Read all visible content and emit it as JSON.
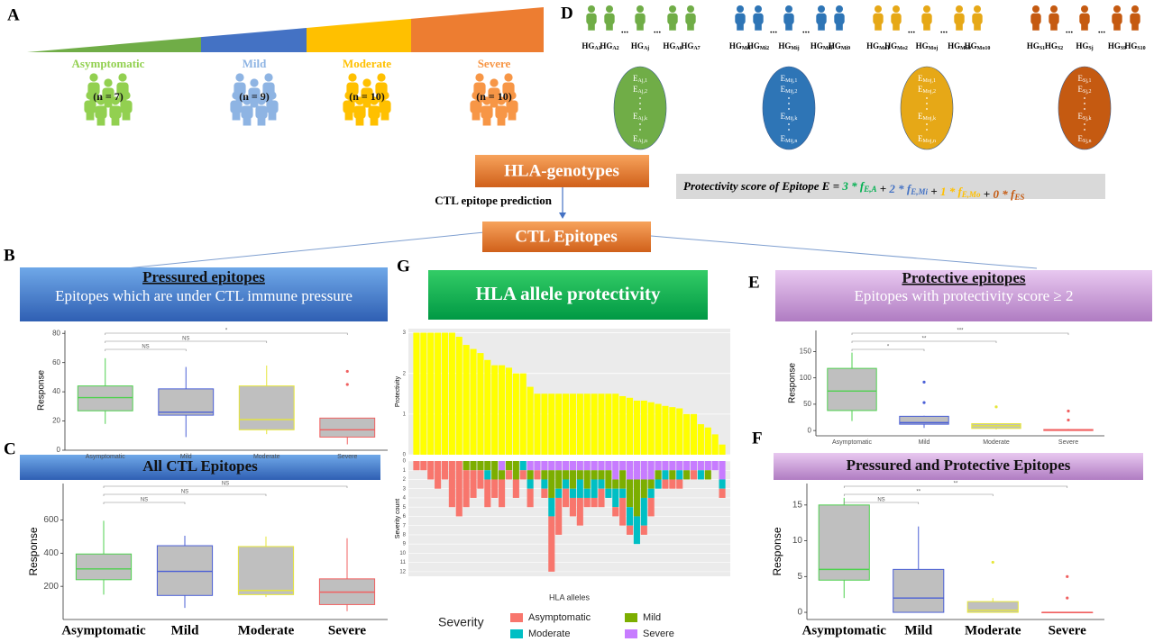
{
  "panels": {
    "A": "A",
    "B": "B",
    "C": "C",
    "D": "D",
    "E": "E",
    "F": "F",
    "G": "G"
  },
  "severity_groups": [
    {
      "name": "Asymptomatic",
      "n": "(n = 7)",
      "color": "#92d050"
    },
    {
      "name": "Mild",
      "n": "(n = 9)",
      "color": "#8eb4e3"
    },
    {
      "name": "Moderate",
      "n": "(n = 10)",
      "color": "#ffc000"
    },
    {
      "name": "Severe",
      "n": "(n = 10)",
      "color": "#f79646"
    }
  ],
  "genotypes": {
    "prefix": "HG",
    "ellipsis": "...",
    "epitope_prefix": "E",
    "groups": [
      {
        "color": "#70ad47",
        "members": [
          "A1",
          "A2",
          "Aj",
          "A6",
          "A7"
        ],
        "epitopes": [
          "Aj,1",
          "Aj,2",
          "Aj,k",
          "Aj,n"
        ]
      },
      {
        "color": "#2e75b6",
        "members": [
          "Mi1",
          "Mi2",
          "Mij",
          "Mi8",
          "Mi9"
        ],
        "epitopes": [
          "Mij,1",
          "Mij,2",
          "Mij,k",
          "Mij,n"
        ]
      },
      {
        "color": "#e6a817",
        "members": [
          "Mo1",
          "Mo2",
          "Moj",
          "Mo9",
          "Mo10"
        ],
        "epitopes": [
          "Moj,1",
          "Moj,2",
          "Moj,k",
          "Moj,n"
        ]
      },
      {
        "color": "#c55a11",
        "members": [
          "S1",
          "S2",
          "Sj",
          "S9",
          "S10"
        ],
        "epitopes": [
          "Sj,1",
          "Sj,2",
          "Sj,k",
          "Sj,n"
        ]
      }
    ]
  },
  "flow": {
    "hla_genotypes": "HLA-genotypes",
    "prediction": "CTL epitope prediction",
    "ctl_epitopes": "CTL Epitopes"
  },
  "formula": {
    "lead": "Protectivity score of Epitope E = ",
    "times": " * ",
    "plus": " + ",
    "terms": [
      {
        "coef": 3,
        "symbol": "f",
        "sub": "E,A",
        "color": "#00b050"
      },
      {
        "coef": 2,
        "symbol": "f",
        "sub": "E,Mi",
        "color": "#4472c4"
      },
      {
        "coef": 1,
        "symbol": "f",
        "sub": "E,Mo",
        "color": "#ffc000"
      },
      {
        "coef": 0,
        "symbol": "f",
        "sub": "ES",
        "color": "#c55a11"
      }
    ]
  },
  "headers": {
    "B": {
      "title": "Pressured epitopes",
      "subtitle": "Epitopes which are under CTL immune  pressure"
    },
    "C": {
      "title": "All CTL Epitopes"
    },
    "E": {
      "title": "Protective epitopes",
      "subtitle": "Epitopes with  protectivity score ≥ 2"
    },
    "F": {
      "title": "Pressured and Protective Epitopes"
    },
    "G": {
      "title": "HLA allele protectivity"
    }
  },
  "chart_data": [
    {
      "type": "box",
      "ylabel": "Response",
      "categories": [
        "Asymptomatic",
        "Mild",
        "Moderate",
        "Severe"
      ],
      "colors": [
        "#4fd14f",
        "#4a5fd6",
        "#e6e63a",
        "#f06060"
      ],
      "boxes": [
        {
          "low": 18,
          "q1": 27,
          "median": 36,
          "q3": 44,
          "high": 63,
          "outliers": []
        },
        {
          "low": 9,
          "q1": 24,
          "median": 26,
          "q3": 42,
          "high": 57,
          "outliers": []
        },
        {
          "low": 11,
          "q1": 14,
          "median": 21,
          "q3": 44,
          "high": 58,
          "outliers": []
        },
        {
          "low": 4,
          "q1": 9,
          "median": 14,
          "q3": 22,
          "high": 22,
          "outliers": [
            45,
            54
          ]
        }
      ],
      "significance": [
        "NS",
        "NS",
        "*"
      ],
      "ylim": [
        0,
        82
      ],
      "yticks": [
        0,
        20,
        40,
        60,
        80
      ]
    },
    {
      "type": "box",
      "ylabel": "Response",
      "categories": [
        "Asymptomatic",
        "Mild",
        "Moderate",
        "Severe"
      ],
      "colors": [
        "#4fd14f",
        "#4a5fd6",
        "#e6e63a",
        "#f06060"
      ],
      "boxes": [
        {
          "low": 150,
          "q1": 240,
          "median": 305,
          "q3": 395,
          "high": 595,
          "outliers": []
        },
        {
          "low": 70,
          "q1": 145,
          "median": 290,
          "q3": 445,
          "high": 505,
          "outliers": []
        },
        {
          "low": 135,
          "q1": 150,
          "median": 175,
          "q3": 440,
          "high": 500,
          "outliers": []
        },
        {
          "low": 50,
          "q1": 90,
          "median": 165,
          "q3": 245,
          "high": 490,
          "outliers": []
        }
      ],
      "significance": [
        "NS",
        "NS",
        "NS"
      ],
      "ylim": [
        0,
        820
      ],
      "yticks": [
        200,
        400,
        600
      ]
    },
    {
      "type": "box",
      "ylabel": "Response",
      "categories": [
        "Asymptomatic",
        "Mild",
        "Moderate",
        "Severe"
      ],
      "colors": [
        "#4fd14f",
        "#4a5fd6",
        "#e6e63a",
        "#f06060"
      ],
      "boxes": [
        {
          "low": 18,
          "q1": 38,
          "median": 75,
          "q3": 118,
          "high": 148,
          "outliers": []
        },
        {
          "low": 5,
          "q1": 12,
          "median": 15,
          "q3": 27,
          "high": 28,
          "outliers": [
            53,
            92
          ]
        },
        {
          "low": 2,
          "q1": 4,
          "median": 9,
          "q3": 13,
          "high": 14,
          "outliers": [
            45
          ]
        },
        {
          "low": 0,
          "q1": 0,
          "median": 1,
          "q3": 2,
          "high": 3,
          "outliers": [
            20,
            37
          ]
        }
      ],
      "significance": [
        "*",
        "**",
        "***"
      ],
      "ylim": [
        -10,
        190
      ],
      "yticks": [
        0,
        50,
        100,
        150
      ]
    },
    {
      "type": "box",
      "ylabel": "Response",
      "categories": [
        "Asymptomatic",
        "Mild",
        "Moderate",
        "Severe"
      ],
      "colors": [
        "#4fd14f",
        "#4a5fd6",
        "#e6e63a",
        "#f06060"
      ],
      "boxes": [
        {
          "low": 2,
          "q1": 4.5,
          "median": 6,
          "q3": 15,
          "high": 16,
          "outliers": []
        },
        {
          "low": 0,
          "q1": 0,
          "median": 2,
          "q3": 6,
          "high": 12,
          "outliers": []
        },
        {
          "low": 0,
          "q1": 0,
          "median": 0.3,
          "q3": 1.5,
          "high": 2,
          "outliers": [
            7
          ]
        },
        {
          "low": 0,
          "q1": 0,
          "median": 0,
          "q3": 0,
          "high": 0,
          "outliers": [
            2,
            5
          ]
        }
      ],
      "significance": [
        "NS",
        "**",
        "**"
      ],
      "ylim": [
        -1,
        18
      ],
      "yticks": [
        0,
        5,
        10,
        15
      ]
    },
    {
      "type": "bar",
      "ylabel": "Protectivity",
      "color": "#ffff00",
      "categories": [
        null,
        null,
        null,
        null,
        null,
        null,
        null,
        null,
        null,
        null,
        null,
        null,
        null,
        null,
        null,
        null,
        null,
        null,
        null,
        null,
        null,
        null,
        null,
        null,
        null,
        null,
        null,
        null,
        null,
        null,
        null,
        null,
        null,
        null,
        null,
        null,
        null,
        null,
        null,
        null,
        null,
        null,
        null,
        null
      ],
      "values": [
        3,
        3,
        3,
        3,
        3,
        3,
        2.9,
        2.7,
        2.6,
        2.5,
        2.33,
        2.2,
        2.2,
        2.14,
        2,
        2,
        1.67,
        1.5,
        1.5,
        1.5,
        1.5,
        1.5,
        1.5,
        1.5,
        1.5,
        1.5,
        1.5,
        1.5,
        1.5,
        1.44,
        1.4,
        1.33,
        1.33,
        1.29,
        1.25,
        1.2,
        1.17,
        1.14,
        1,
        1,
        0.75,
        0.67,
        0.5,
        0.25
      ],
      "ylim": [
        0,
        3.1
      ],
      "yticks": [
        0,
        1,
        2,
        3
      ],
      "grid": true
    },
    {
      "type": "stacked_bar",
      "ylabel": "Severity count",
      "xlabel": "HLA alleles",
      "legend_title": "Severity",
      "categories": [
        null,
        null,
        null,
        null,
        null,
        null,
        null,
        null,
        null,
        null,
        null,
        null,
        null,
        null,
        null,
        null,
        null,
        null,
        null,
        null,
        null,
        null,
        null,
        null,
        null,
        null,
        null,
        null,
        null,
        null,
        null,
        null,
        null,
        null,
        null,
        null,
        null,
        null,
        null,
        null,
        null,
        null,
        null,
        null
      ],
      "series": [
        {
          "name": "Asymptomatic",
          "color": "#f8766d",
          "values": [
            1,
            1,
            2,
            3,
            2,
            5,
            6,
            4,
            3,
            2,
            3,
            2,
            3,
            1,
            2,
            1,
            2,
            1,
            1,
            6,
            4,
            2,
            2,
            3,
            1,
            1,
            2,
            0,
            1,
            3,
            1,
            0,
            1,
            2,
            0,
            1,
            1,
            1,
            0,
            1,
            0,
            0,
            0,
            1
          ]
        },
        {
          "name": "Mild",
          "color": "#7cae00",
          "values": [
            0,
            0,
            0,
            0,
            0,
            0,
            0,
            1,
            1,
            1,
            1,
            2,
            1,
            1,
            2,
            0,
            1,
            0,
            1,
            3,
            2,
            1,
            2,
            1,
            2,
            1,
            1,
            2,
            1,
            2,
            3,
            4,
            2,
            1,
            1,
            0,
            1,
            0,
            1,
            0,
            0,
            1,
            0,
            0
          ]
        },
        {
          "name": "Moderate",
          "color": "#00bfc4",
          "values": [
            0,
            0,
            0,
            0,
            0,
            0,
            0,
            0,
            0,
            0,
            1,
            0,
            0,
            0,
            0,
            1,
            1,
            0,
            1,
            2,
            1,
            1,
            1,
            2,
            1,
            2,
            1,
            1,
            2,
            1,
            2,
            3,
            3,
            1,
            1,
            1,
            0,
            1,
            0,
            0,
            1,
            0,
            0,
            1
          ]
        },
        {
          "name": "Severe",
          "color": "#c77cff",
          "values": [
            0,
            0,
            0,
            0,
            0,
            0,
            0,
            0,
            0,
            0,
            0,
            0,
            1,
            0,
            0,
            0,
            1,
            1,
            1,
            1,
            1,
            1,
            1,
            1,
            1,
            1,
            1,
            1,
            2,
            1,
            2,
            2,
            2,
            2,
            1,
            1,
            1,
            1,
            1,
            1,
            1,
            1,
            1,
            2
          ]
        }
      ],
      "ylim": [
        0,
        12.5
      ],
      "yticks": [
        0,
        1,
        2,
        3,
        4,
        5,
        6,
        7,
        8,
        9,
        10,
        11,
        12
      ],
      "grid": true
    }
  ]
}
